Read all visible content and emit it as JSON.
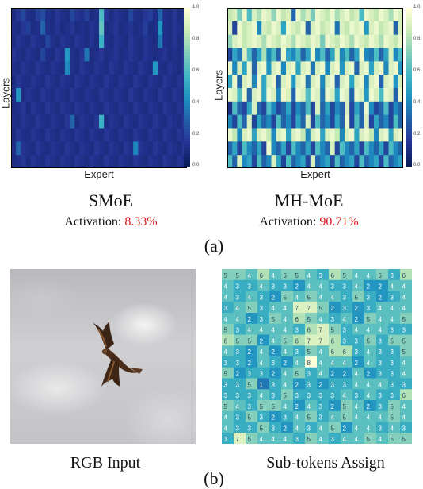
{
  "panel_a": {
    "label": "(a)",
    "left": {
      "title": "SMoE",
      "activation_label": "Activation: ",
      "activation_value": "8.33%"
    },
    "right": {
      "title": "MH-MoE",
      "activation_label": "Activation: ",
      "activation_value": "90.71%"
    }
  },
  "panel_b": {
    "label": "(b)",
    "left_caption": "RGB Input",
    "right_caption": "Sub-tokens Assign"
  },
  "chart_data": [
    {
      "type": "heatmap",
      "title": "SMoE",
      "xlabel": "Expert",
      "ylabel": "Layers",
      "colorscale": [
        "#081d58",
        "#253494",
        "#225ea8",
        "#1d91c0",
        "#41b6c4",
        "#7fcdbb",
        "#c7e9b4",
        "#ffffd9"
      ],
      "colorbar": {
        "range": [
          0,
          1
        ],
        "ticks": [
          "0.0",
          "0.2",
          "0.4",
          "0.6",
          "0.8",
          "1.0"
        ]
      },
      "values": [
        [
          0.1,
          0.15,
          0.2,
          0.12,
          0.1,
          0.18,
          0.22,
          0.12,
          0.1,
          0.15,
          0.12,
          0.1,
          0.2,
          0.14,
          0.12,
          0.18,
          0.1,
          0.12,
          0.6,
          0.15,
          0.1,
          0.14,
          0.12,
          0.1,
          0.2,
          0.12,
          0.1,
          0.15,
          0.18,
          0.12,
          0.3,
          0.12,
          0.1,
          0.15,
          0.1,
          0.12
        ],
        [
          0.12,
          0.1,
          0.15,
          0.18,
          0.1,
          0.12,
          0.3,
          0.12,
          0.1,
          0.14,
          0.1,
          0.12,
          0.15,
          0.1,
          0.12,
          0.1,
          0.14,
          0.12,
          0.65,
          0.1,
          0.12,
          0.15,
          0.1,
          0.12,
          0.14,
          0.1,
          0.12,
          0.18,
          0.1,
          0.12,
          0.45,
          0.12,
          0.1,
          0.14,
          0.12,
          0.1
        ],
        [
          0.1,
          0.14,
          0.12,
          0.1,
          0.15,
          0.12,
          0.1,
          0.2,
          0.12,
          0.1,
          0.14,
          0.12,
          0.1,
          0.15,
          0.12,
          0.1,
          0.14,
          0.1,
          0.55,
          0.12,
          0.1,
          0.14,
          0.12,
          0.1,
          0.15,
          0.12,
          0.1,
          0.14,
          0.12,
          0.1,
          0.35,
          0.12,
          0.1,
          0.14,
          0.1,
          0.12
        ],
        [
          0.15,
          0.12,
          0.1,
          0.14,
          0.12,
          0.1,
          0.2,
          0.12,
          0.1,
          0.15,
          0.12,
          0.45,
          0.12,
          0.1,
          0.14,
          0.35,
          0.1,
          0.12,
          0.15,
          0.1,
          0.12,
          0.14,
          0.1,
          0.12,
          0.15,
          0.12,
          0.1,
          0.14,
          0.12,
          0.1,
          0.12,
          0.14,
          0.1,
          0.12,
          0.1,
          0.14
        ],
        [
          0.12,
          0.1,
          0.14,
          0.12,
          0.1,
          0.15,
          0.12,
          0.1,
          0.14,
          0.12,
          0.1,
          0.4,
          0.12,
          0.1,
          0.15,
          0.12,
          0.1,
          0.14,
          0.12,
          0.1,
          0.15,
          0.12,
          0.1,
          0.14,
          0.12,
          0.1,
          0.15,
          0.12,
          0.1,
          0.45,
          0.12,
          0.1,
          0.14,
          0.12,
          0.1,
          0.15
        ],
        [
          0.1,
          0.15,
          0.12,
          0.1,
          0.14,
          0.12,
          0.1,
          0.15,
          0.12,
          0.1,
          0.14,
          0.12,
          0.1,
          0.15,
          0.12,
          0.1,
          0.14,
          0.12,
          0.1,
          0.15,
          0.12,
          0.1,
          0.14,
          0.12,
          0.1,
          0.15,
          0.12,
          0.1,
          0.14,
          0.12,
          0.1,
          0.15,
          0.12,
          0.1,
          0.14,
          0.12
        ],
        [
          0.12,
          0.45,
          0.1,
          0.14,
          0.12,
          0.1,
          0.15,
          0.12,
          0.1,
          0.14,
          0.12,
          0.1,
          0.15,
          0.12,
          0.1,
          0.14,
          0.12,
          0.1,
          0.15,
          0.12,
          0.1,
          0.14,
          0.12,
          0.1,
          0.15,
          0.12,
          0.1,
          0.14,
          0.12,
          0.1,
          0.15,
          0.12,
          0.1,
          0.14,
          0.12,
          0.1
        ],
        [
          0.1,
          0.12,
          0.15,
          0.1,
          0.14,
          0.12,
          0.1,
          0.15,
          0.12,
          0.1,
          0.14,
          0.12,
          0.1,
          0.15,
          0.12,
          0.1,
          0.14,
          0.12,
          0.1,
          0.15,
          0.12,
          0.1,
          0.14,
          0.12,
          0.1,
          0.15,
          0.12,
          0.1,
          0.14,
          0.12,
          0.1,
          0.15,
          0.12,
          0.1,
          0.14,
          0.12
        ],
        [
          0.12,
          0.1,
          0.14,
          0.12,
          0.1,
          0.15,
          0.12,
          0.1,
          0.14,
          0.12,
          0.1,
          0.15,
          0.3,
          0.1,
          0.14,
          0.12,
          0.1,
          0.15,
          0.55,
          0.1,
          0.14,
          0.12,
          0.1,
          0.15,
          0.12,
          0.1,
          0.14,
          0.12,
          0.1,
          0.15,
          0.12,
          0.1,
          0.14,
          0.12,
          0.1,
          0.15
        ],
        [
          0.1,
          0.15,
          0.12,
          0.1,
          0.14,
          0.12,
          0.1,
          0.15,
          0.12,
          0.1,
          0.14,
          0.12,
          0.1,
          0.15,
          0.12,
          0.1,
          0.14,
          0.12,
          0.1,
          0.15,
          0.12,
          0.1,
          0.14,
          0.12,
          0.1,
          0.15,
          0.12,
          0.1,
          0.14,
          0.12,
          0.1,
          0.15,
          0.12,
          0.1,
          0.14,
          0.12
        ],
        [
          0.12,
          0.3,
          0.14,
          0.12,
          0.1,
          0.15,
          0.12,
          0.1,
          0.14,
          0.12,
          0.1,
          0.15,
          0.12,
          0.1,
          0.14,
          0.12,
          0.1,
          0.15,
          0.12,
          0.1,
          0.14,
          0.12,
          0.1,
          0.15,
          0.12,
          0.4,
          0.14,
          0.12,
          0.1,
          0.15,
          0.12,
          0.1,
          0.14,
          0.12,
          0.1,
          0.15
        ],
        [
          0.1,
          0.12,
          0.15,
          0.1,
          0.14,
          0.12,
          0.1,
          0.15,
          0.12,
          0.1,
          0.14,
          0.12,
          0.1,
          0.15,
          0.12,
          0.1,
          0.14,
          0.12,
          0.1,
          0.15,
          0.12,
          0.1,
          0.14,
          0.12,
          0.1,
          0.15,
          0.12,
          0.1,
          0.14,
          0.12,
          0.1,
          0.15,
          0.12,
          0.1,
          0.14,
          0.12
        ]
      ]
    },
    {
      "type": "heatmap",
      "title": "MH-MoE",
      "xlabel": "Expert",
      "ylabel": "Layers",
      "colorscale": [
        "#081d58",
        "#253494",
        "#225ea8",
        "#1d91c0",
        "#41b6c4",
        "#7fcdbb",
        "#c7e9b4",
        "#ffffd9"
      ],
      "colorbar": {
        "range": [
          0,
          1
        ],
        "ticks": [
          "0.0",
          "0.2",
          "0.4",
          "0.6",
          "0.8",
          "1.0"
        ]
      },
      "values": [
        [
          0.85,
          0.9,
          0.7,
          0.95,
          0.6,
          0.9,
          0.8,
          0.95,
          0.9,
          0.75,
          0.95,
          0.85,
          0.9,
          0.3,
          0.95,
          0.8,
          0.9,
          0.7,
          0.95,
          0.9,
          0.85,
          0.95,
          0.8,
          0.9,
          0.95,
          0.85,
          0.9,
          0.6,
          0.95,
          0.9,
          0.85,
          0.95,
          0.9,
          0.8,
          0.95,
          0.9
        ],
        [
          0.9,
          0.2,
          0.95,
          0.85,
          0.9,
          0.95,
          0.4,
          0.9,
          0.85,
          0.95,
          0.9,
          0.5,
          0.95,
          0.9,
          0.85,
          0.95,
          0.3,
          0.9,
          0.95,
          0.85,
          0.9,
          0.95,
          0.35,
          0.9,
          0.85,
          0.95,
          0.9,
          0.95,
          0.45,
          0.9,
          0.95,
          0.85,
          0.9,
          0.95,
          0.3,
          0.9
        ],
        [
          0.75,
          0.9,
          0.95,
          0.85,
          0.9,
          0.95,
          0.9,
          0.8,
          0.95,
          0.9,
          0.85,
          0.95,
          0.9,
          0.8,
          0.95,
          0.9,
          0.85,
          0.95,
          0.9,
          0.7,
          0.95,
          0.9,
          0.85,
          0.95,
          0.9,
          0.8,
          0.95,
          0.9,
          0.85,
          0.95,
          0.9,
          0.8,
          0.95,
          0.9,
          0.85,
          0.95
        ],
        [
          0.2,
          0.5,
          0.35,
          0.9,
          0.6,
          0.3,
          0.5,
          0.8,
          0.4,
          0.6,
          0.3,
          0.95,
          0.5,
          0.4,
          0.6,
          0.3,
          0.5,
          0.95,
          0.4,
          0.6,
          0.3,
          0.5,
          0.9,
          0.4,
          0.6,
          0.3,
          0.5,
          0.95,
          0.4,
          0.35,
          0.6,
          0.3,
          0.5,
          0.9,
          0.4,
          0.6
        ],
        [
          0.95,
          0.4,
          0.9,
          0.5,
          0.95,
          0.3,
          0.9,
          0.95,
          0.45,
          0.9,
          0.95,
          0.4,
          0.9,
          0.95,
          0.5,
          0.9,
          0.95,
          0.35,
          0.9,
          0.95,
          0.4,
          0.9,
          0.95,
          0.45,
          0.9,
          0.95,
          0.3,
          0.9,
          0.95,
          0.5,
          0.9,
          0.95,
          0.4,
          0.9,
          0.95,
          0.45
        ],
        [
          0.5,
          0.95,
          0.3,
          0.9,
          0.95,
          0.4,
          0.95,
          0.5,
          0.9,
          0.95,
          0.3,
          0.9,
          0.95,
          0.45,
          0.9,
          0.95,
          0.35,
          0.9,
          0.95,
          0.4,
          0.9,
          0.95,
          0.3,
          0.9,
          0.95,
          0.5,
          0.9,
          0.95,
          0.4,
          0.9,
          0.95,
          0.3,
          0.9,
          0.95,
          0.45,
          0.9
        ],
        [
          0.95,
          0.9,
          0.6,
          0.95,
          0.3,
          0.9,
          0.95,
          0.5,
          0.95,
          0.9,
          0.4,
          0.95,
          0.9,
          0.3,
          0.95,
          0.9,
          0.6,
          0.95,
          0.9,
          0.35,
          0.95,
          0.9,
          0.5,
          0.95,
          0.9,
          0.3,
          0.95,
          0.9,
          0.45,
          0.95,
          0.9,
          0.6,
          0.95,
          0.9,
          0.3,
          0.95
        ],
        [
          0.1,
          0.6,
          0.3,
          0.2,
          0.5,
          0.9,
          0.3,
          0.2,
          0.6,
          0.4,
          0.2,
          0.3,
          0.5,
          0.2,
          0.4,
          0.3,
          0.6,
          0.2,
          0.9,
          0.3,
          0.5,
          0.2,
          0.4,
          0.3,
          0.9,
          0.2,
          0.5,
          0.3,
          0.95,
          0.4,
          0.2,
          0.3,
          0.6,
          0.2,
          0.4,
          0.3
        ],
        [
          0.4,
          0.2,
          0.6,
          0.3,
          0.9,
          0.2,
          0.5,
          0.3,
          0.4,
          0.2,
          0.6,
          0.3,
          0.4,
          0.2,
          0.5,
          0.3,
          0.9,
          0.2,
          0.6,
          0.3,
          0.4,
          0.2,
          0.5,
          0.3,
          0.95,
          0.2,
          0.6,
          0.3,
          0.9,
          0.2,
          0.5,
          0.3,
          0.4,
          0.2,
          0.6,
          0.3
        ],
        [
          0.95,
          0.85,
          0.4,
          0.9,
          0.95,
          0.5,
          0.9,
          0.95,
          0.85,
          0.4,
          0.9,
          0.95,
          0.5,
          0.9,
          0.95,
          0.85,
          0.4,
          0.9,
          0.95,
          0.5,
          0.9,
          0.95,
          0.85,
          0.4,
          0.9,
          0.95,
          0.5,
          0.9,
          0.95,
          0.85,
          0.4,
          0.9,
          0.95,
          0.5,
          0.9,
          0.95
        ],
        [
          0.3,
          0.5,
          0.2,
          0.6,
          0.4,
          0.3,
          0.5,
          0.2,
          0.95,
          0.4,
          0.3,
          0.5,
          0.2,
          0.6,
          0.4,
          0.3,
          0.5,
          0.2,
          0.6,
          0.4,
          0.3,
          0.9,
          0.2,
          0.6,
          0.4,
          0.3,
          0.5,
          0.2,
          0.6,
          0.4,
          0.3,
          0.5,
          0.2,
          0.6,
          0.4,
          0.3
        ],
        [
          0.6,
          0.3,
          0.9,
          0.4,
          0.5,
          0.2,
          0.6,
          0.3,
          0.4,
          0.9,
          0.5,
          0.2,
          0.6,
          0.3,
          0.4,
          0.5,
          0.2,
          0.9,
          0.3,
          0.4,
          0.5,
          0.2,
          0.6,
          0.3,
          0.4,
          0.5,
          0.2,
          0.6,
          0.3,
          0.4,
          0.5,
          0.2,
          0.6,
          0.3,
          0.4,
          0.5
        ]
      ]
    },
    {
      "type": "heatmap",
      "title": "Sub-tokens Assign",
      "xlabel": "",
      "ylabel": "",
      "values": [
        [
          5,
          5,
          4,
          6,
          4,
          5,
          5,
          4,
          3,
          6,
          5,
          4,
          4,
          5,
          3,
          6
        ],
        [
          4,
          3,
          3,
          4,
          3,
          3,
          2,
          4,
          4,
          3,
          3,
          4,
          2,
          2,
          4,
          4
        ],
        [
          4,
          3,
          4,
          3,
          2,
          5,
          4,
          5,
          4,
          4,
          3,
          5,
          3,
          2,
          3,
          4
        ],
        [
          3,
          4,
          5,
          3,
          4,
          4,
          7,
          7,
          5,
          2,
          3,
          2,
          3,
          4,
          4,
          4
        ],
        [
          4,
          4,
          2,
          3,
          5,
          4,
          6,
          5,
          4,
          3,
          4,
          2,
          5,
          4,
          4,
          5
        ],
        [
          5,
          3,
          4,
          4,
          4,
          4,
          3,
          6,
          7,
          5,
          3,
          4,
          4,
          4,
          3,
          3
        ],
        [
          6,
          5,
          5,
          2,
          4,
          5,
          6,
          7,
          7,
          6,
          3,
          3,
          5,
          3,
          5,
          5
        ],
        [
          4,
          3,
          2,
          4,
          2,
          4,
          3,
          5,
          4,
          6,
          6,
          3,
          4,
          3,
          3,
          5
        ],
        [
          3,
          3,
          2,
          4,
          3,
          2,
          4,
          8,
          4,
          4,
          4,
          2,
          4,
          3,
          3,
          4
        ],
        [
          5,
          2,
          3,
          3,
          2,
          4,
          5,
          3,
          4,
          2,
          2,
          4,
          2,
          3,
          3,
          4
        ],
        [
          3,
          3,
          5,
          1,
          3,
          4,
          2,
          3,
          2,
          3,
          3,
          4,
          4,
          4,
          3,
          3
        ],
        [
          3,
          3,
          3,
          4,
          3,
          5,
          3,
          3,
          3,
          3,
          4,
          3,
          4,
          3,
          3,
          6
        ],
        [
          5,
          4,
          3,
          5,
          5,
          4,
          2,
          4,
          3,
          2,
          5,
          4,
          2,
          3,
          5,
          4
        ],
        [
          4,
          3,
          5,
          3,
          2,
          3,
          4,
          5,
          3,
          4,
          5,
          4,
          4,
          4,
          5,
          4
        ],
        [
          4,
          3,
          3,
          5,
          3,
          2,
          4,
          3,
          4,
          5,
          2,
          4,
          4,
          3,
          4,
          3
        ],
        [
          3,
          7,
          5,
          4,
          4,
          4,
          3,
          5,
          4,
          3,
          4,
          4,
          5,
          4,
          5,
          5
        ]
      ],
      "colorscale": [
        "#081d58",
        "#225ea8",
        "#1d91c0",
        "#41b6c4",
        "#7fcdbb",
        "#c7e9b4",
        "#ffffd9"
      ]
    }
  ]
}
